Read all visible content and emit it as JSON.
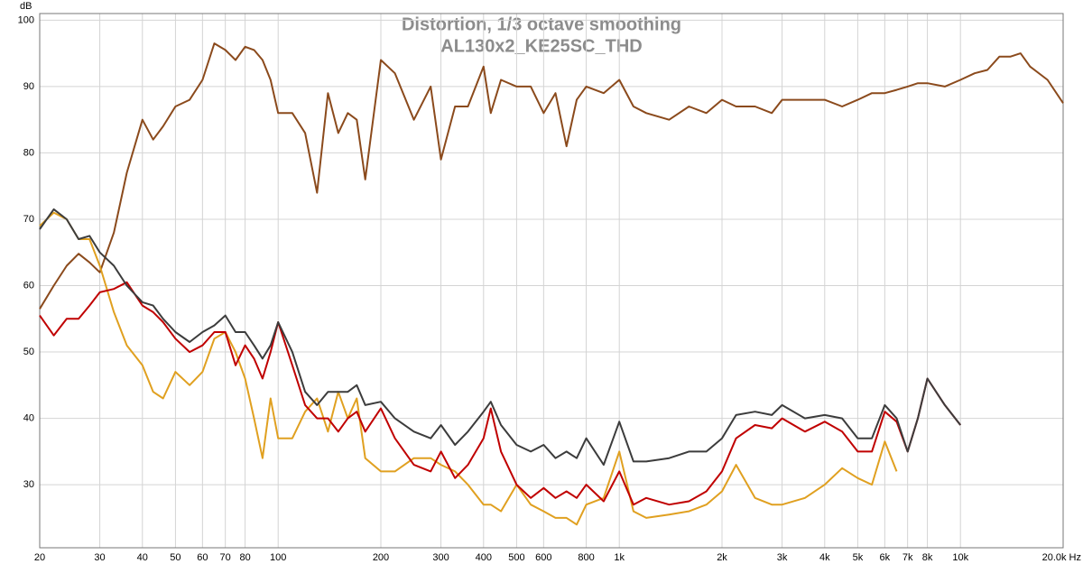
{
  "chart_data": {
    "type": "line",
    "title": "Distortion, 1/3 octave smoothing",
    "subtitle": "AL130x2_KE25SC_THD",
    "y_label": "dB",
    "xscale": "log",
    "grid": true,
    "x": [
      20,
      22,
      24,
      26,
      28,
      30,
      33,
      36,
      40,
      43,
      46,
      50,
      55,
      60,
      65,
      70,
      75,
      80,
      85,
      90,
      95,
      100,
      110,
      120,
      130,
      140,
      150,
      160,
      170,
      180,
      200,
      220,
      250,
      280,
      300,
      330,
      360,
      400,
      420,
      450,
      500,
      550,
      600,
      650,
      700,
      750,
      800,
      900,
      1000,
      1100,
      1200,
      1400,
      1600,
      1800,
      2000,
      2200,
      2500,
      2800,
      3000,
      3500,
      4000,
      4500,
      5000,
      5500,
      6000,
      6500,
      7000,
      7500,
      8000,
      9000,
      10000,
      11000,
      12000,
      13000,
      14000,
      15000,
      16000,
      18000,
      20000
    ],
    "series": [
      {
        "color": "#8b4a1c",
        "values": [
          56.5,
          60,
          63,
          64.8,
          63.5,
          62,
          68,
          77,
          85,
          82,
          84,
          87,
          88,
          91,
          96.5,
          95.5,
          94,
          96,
          95.5,
          94,
          91,
          86,
          86,
          83,
          74,
          89,
          83,
          86,
          85,
          76,
          94,
          92,
          85,
          90,
          79,
          87,
          87,
          93,
          86,
          91,
          90,
          90,
          86,
          89,
          81,
          88,
          90,
          89,
          91,
          87,
          86,
          85,
          87,
          86,
          88,
          87,
          87,
          86,
          88,
          88,
          88,
          87,
          88,
          89,
          89,
          89.5,
          90,
          90.5,
          90.5,
          90,
          91,
          92,
          92.5,
          94.5,
          94.5,
          95,
          93,
          91,
          87.5
        ]
      },
      {
        "color": "#e0a020",
        "values": [
          69,
          71,
          70,
          67,
          67,
          63,
          56,
          51,
          48,
          44,
          43,
          47,
          45,
          47,
          52,
          53,
          50,
          46,
          40,
          34,
          43,
          37,
          37,
          41,
          43,
          38,
          44,
          40,
          43,
          34,
          32,
          32,
          34,
          34,
          33,
          32,
          30,
          27,
          27,
          26,
          30,
          27,
          26,
          25,
          25,
          24,
          27,
          28,
          35,
          26,
          25,
          25.5,
          26,
          27,
          29,
          33,
          28,
          27,
          27,
          28,
          30,
          32.5,
          31,
          30,
          36.5,
          32,
          null,
          null,
          null,
          null,
          null,
          null,
          null,
          null,
          null,
          null,
          null,
          null,
          null
        ]
      },
      {
        "color": "#c00000",
        "values": [
          55.5,
          52.5,
          55,
          55,
          57,
          59,
          59.5,
          60.5,
          57,
          56,
          54.5,
          52,
          50,
          51,
          53,
          53,
          48,
          51,
          49,
          46,
          50,
          54.5,
          48,
          42,
          40,
          40,
          38,
          40,
          41,
          38,
          41.5,
          37,
          33,
          32,
          35,
          31,
          33,
          37,
          41.5,
          35,
          30,
          28,
          29.5,
          28,
          29,
          28,
          30,
          27.5,
          32,
          27,
          28,
          27,
          27.5,
          29,
          32,
          37,
          39,
          38.5,
          40,
          38,
          39.5,
          38,
          35,
          35,
          41,
          39.5,
          35,
          40,
          46,
          42,
          39,
          null,
          null,
          null,
          null,
          null,
          null,
          null,
          null
        ]
      },
      {
        "color": "#3c3c3c",
        "values": [
          68.5,
          71.5,
          70,
          67,
          67.5,
          65,
          63,
          60,
          57.5,
          57,
          55,
          53,
          51.5,
          53,
          54,
          55.5,
          53,
          53,
          51,
          49,
          51,
          54.5,
          50,
          44,
          42,
          44,
          44,
          44,
          45,
          42,
          42.5,
          40,
          38,
          37,
          39,
          36,
          38,
          41,
          42.5,
          39,
          36,
          35,
          36,
          34,
          35,
          34,
          37,
          33,
          39.5,
          33.5,
          33.5,
          34,
          35,
          35,
          37,
          40.5,
          41,
          40.5,
          42,
          40,
          40.5,
          40,
          37,
          37,
          42,
          40,
          35,
          40,
          46,
          42,
          39,
          null,
          null,
          null,
          null,
          null,
          null,
          null,
          null
        ]
      }
    ],
    "xlim": [
      20,
      20000
    ],
    "ylim": [
      20.5,
      101
    ],
    "xticks": [
      20,
      30,
      40,
      50,
      60,
      70,
      80,
      100,
      200,
      300,
      400,
      500,
      600,
      800,
      {
        "value": 1000,
        "label": "1k"
      },
      {
        "value": 2000,
        "label": "2k"
      },
      {
        "value": 3000,
        "label": "3k"
      },
      {
        "value": 4000,
        "label": "4k"
      },
      {
        "value": 5000,
        "label": "5k"
      },
      {
        "value": 6000,
        "label": "6k"
      },
      {
        "value": 7000,
        "label": "7k"
      },
      {
        "value": 8000,
        "label": "8k"
      },
      {
        "value": 10000,
        "label": "10k"
      },
      {
        "value": 20000,
        "label": "20.0k Hz"
      }
    ],
    "yticks": [
      30,
      40,
      50,
      60,
      70,
      80,
      90,
      100
    ]
  }
}
